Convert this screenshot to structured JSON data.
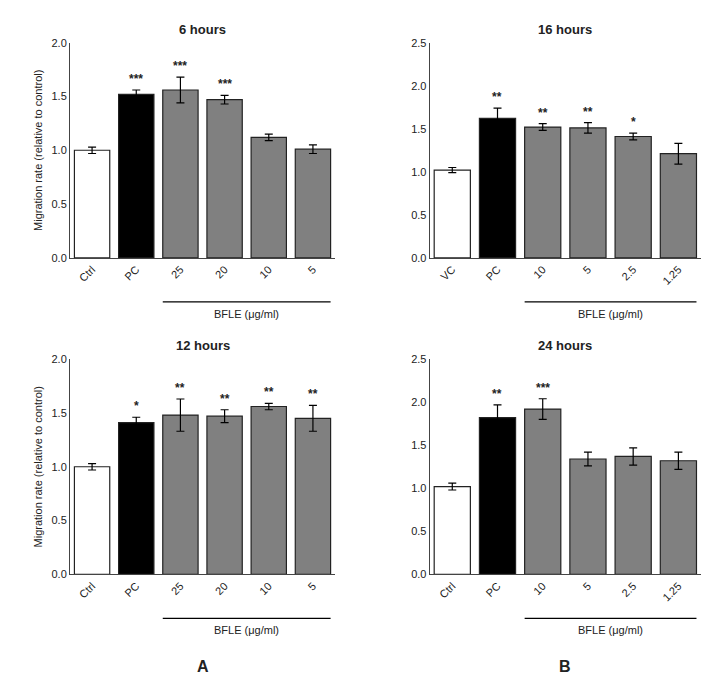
{
  "chart_data": [
    {
      "type": "bar",
      "title": "6 hours",
      "categories": [
        "Ctrl",
        "PC",
        "25",
        "20",
        "10",
        "5"
      ],
      "values": [
        1.0,
        1.52,
        1.56,
        1.47,
        1.12,
        1.01
      ],
      "errors": [
        0.03,
        0.04,
        0.12,
        0.04,
        0.03,
        0.04
      ],
      "colors": [
        "white",
        "black",
        "gray",
        "gray",
        "gray",
        "gray"
      ],
      "significance": [
        null,
        "***",
        "***",
        "***",
        null,
        null
      ],
      "ylim": [
        0,
        2.0
      ],
      "yticks": [
        {
          "value": 0.0,
          "label": "0.0"
        },
        0.5,
        {
          "value": 1.0,
          "label": "1.0"
        },
        1.5,
        {
          "value": 2.0,
          "label": "2.0"
        }
      ],
      "ylabel": "Migration rate (relative to control)",
      "bracket": {
        "text": "BFLE (μg/ml)",
        "from": "25",
        "to": "5"
      },
      "grid": false
    },
    {
      "type": "bar",
      "title": "16 hours",
      "categories": [
        "VC",
        "PC",
        "10",
        "5",
        "2.5",
        "1.25"
      ],
      "values": [
        1.02,
        1.62,
        1.52,
        1.51,
        1.41,
        1.21
      ],
      "errors": [
        0.03,
        0.12,
        0.04,
        0.06,
        0.04,
        0.12
      ],
      "colors": [
        "white",
        "black",
        "gray",
        "gray",
        "gray",
        "gray"
      ],
      "significance": [
        null,
        "**",
        "**",
        "**",
        "*",
        null
      ],
      "ylim": [
        0,
        2.5
      ],
      "yticks": [
        {
          "value": 0.0,
          "label": "0.0"
        },
        0.5,
        {
          "value": 1.0,
          "label": "1.0"
        },
        1.5,
        {
          "value": 2.0,
          "label": "2.0"
        },
        2.5
      ],
      "bracket": {
        "text": "BFLE (μg/ml)",
        "from": "10",
        "to": "1.25"
      },
      "grid": false
    },
    {
      "type": "bar",
      "title": "12 hours",
      "categories": [
        "Ctrl",
        "PC",
        "25",
        "20",
        "10",
        "5"
      ],
      "values": [
        1.0,
        1.41,
        1.48,
        1.47,
        1.56,
        1.45
      ],
      "errors": [
        0.03,
        0.05,
        0.15,
        0.06,
        0.03,
        0.12
      ],
      "colors": [
        "white",
        "black",
        "gray",
        "gray",
        "gray",
        "gray"
      ],
      "significance": [
        null,
        "*",
        "**",
        "**",
        "**",
        "**"
      ],
      "ylim": [
        0,
        2.0
      ],
      "yticks": [
        {
          "value": 0.0,
          "label": "0.0"
        },
        0.5,
        {
          "value": 1.0,
          "label": "1.0"
        },
        1.5,
        {
          "value": 2.0,
          "label": "2.0"
        }
      ],
      "ylabel": "Migration rate (relative to control)",
      "bracket": {
        "text": "BFLE (μg/ml)",
        "from": "25",
        "to": "5"
      },
      "annotations": [
        "A"
      ],
      "grid": false
    },
    {
      "type": "bar",
      "title": "24 hours",
      "categories": [
        "Ctrl",
        "PC",
        "10",
        "5",
        "2.5",
        "1.25"
      ],
      "values": [
        1.02,
        1.82,
        1.92,
        1.34,
        1.37,
        1.32
      ],
      "errors": [
        0.04,
        0.15,
        0.12,
        0.08,
        0.1,
        0.1
      ],
      "colors": [
        "white",
        "black",
        "gray",
        "gray",
        "gray",
        "gray"
      ],
      "significance": [
        null,
        "**",
        "***",
        null,
        null,
        null
      ],
      "ylim": [
        0,
        2.5
      ],
      "yticks": [
        {
          "value": 0.0,
          "label": "0.0"
        },
        0.5,
        {
          "value": 1.0,
          "label": "1.0"
        },
        1.5,
        {
          "value": 2.0,
          "label": "2.0"
        },
        2.5
      ],
      "bracket": {
        "text": "BFLE (μg/ml)",
        "from": "10",
        "to": "1.25"
      },
      "annotations": [
        "B"
      ],
      "grid": false
    }
  ]
}
